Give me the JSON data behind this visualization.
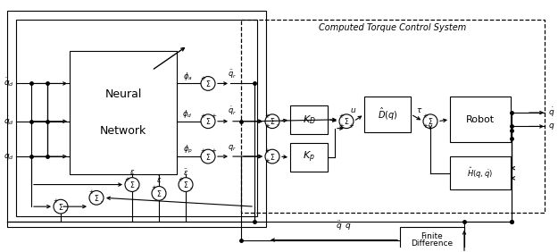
{
  "title": "Computed Torque Control System",
  "bg_color": "#ffffff",
  "line_color": "#000000",
  "nn_label1": "Neural",
  "nn_label2": "Network",
  "robot_label": "Robot",
  "kd_label": "$K_D$",
  "kp_label": "$K_p$",
  "dq_label": "$\\hat{D}(q)$",
  "hq_label": "$\\hat{H}(q,\\dot{q})$",
  "fd_label1": "Finite",
  "fd_label2": "Difference",
  "inputs": [
    "$\\ddot{q}_d$",
    "$\\dot{q}_d$",
    "$q_d$"
  ],
  "phi_labels": [
    "$\\phi_a$",
    "$\\phi_d$",
    "$\\phi_p$"
  ],
  "qr_labels": [
    "$\\ddot{q}_r$",
    "$\\dot{q}_r$",
    "$q_r$"
  ],
  "out_labels": [
    "$\\dot{q}$",
    "$q$"
  ],
  "q_hat_label": "$\\ddot{q}$",
  "u_label": "u",
  "tau_label": "$\\tau$",
  "eps_labels": [
    "$\\varepsilon$",
    "$\\dot{\\varepsilon}$",
    "$\\ddot{\\varepsilon}$"
  ]
}
